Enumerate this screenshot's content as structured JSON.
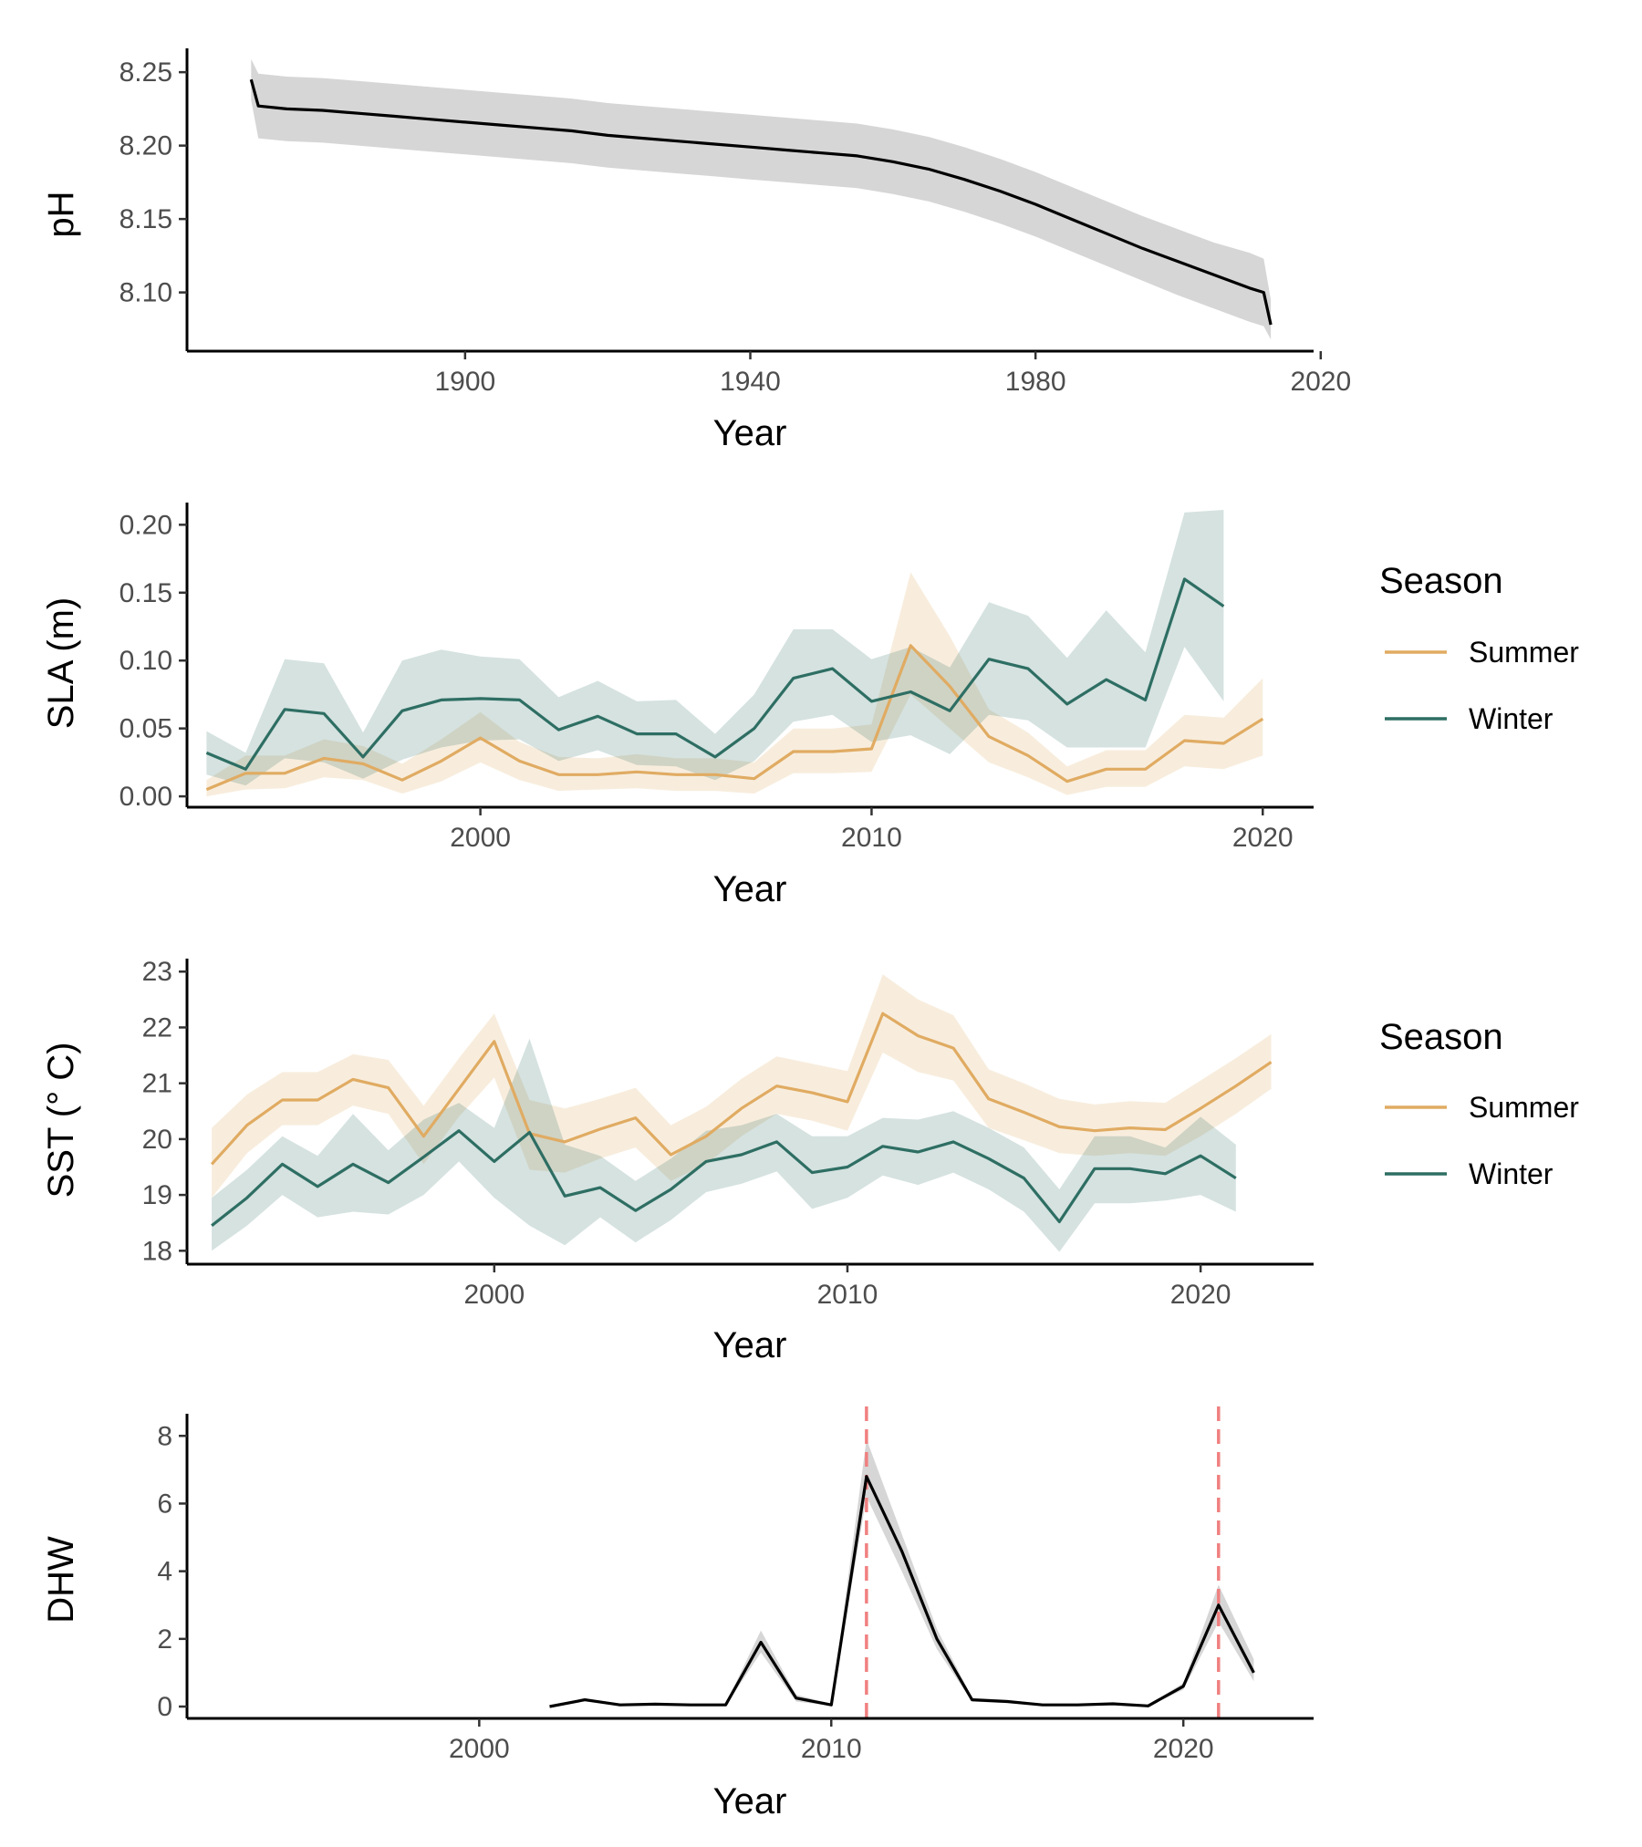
{
  "colors": {
    "summer": "#E0AB62",
    "winter": "#2E6E63",
    "line": "#000000",
    "band": "#BDBDBD",
    "vline": "#F08080"
  },
  "chart_data": [
    {
      "type": "line",
      "xlabel": "Year",
      "ylabel": "pH",
      "xlim": [
        1861,
        2019
      ],
      "ylim": [
        8.06,
        8.265
      ],
      "x_ticks": [
        1900,
        1940,
        1980,
        2020
      ],
      "y_ticks": [
        8.1,
        8.15,
        8.2,
        8.25
      ],
      "y_tick_labels": [
        "8.10",
        "8.15",
        "8.20",
        "8.25"
      ],
      "grid": false,
      "legend": "none",
      "series": [
        {
          "x": [
            1870,
            1871,
            1875,
            1880,
            1885,
            1890,
            1895,
            1900,
            1905,
            1910,
            1915,
            1920,
            1925,
            1930,
            1935,
            1940,
            1945,
            1950,
            1955,
            1960,
            1965,
            1970,
            1975,
            1980,
            1985,
            1990,
            1995,
            2000,
            2005,
            2010,
            2012,
            2013
          ],
          "y": [
            8.245,
            8.227,
            8.225,
            8.224,
            8.222,
            8.22,
            8.218,
            8.216,
            8.214,
            8.212,
            8.21,
            8.207,
            8.205,
            8.203,
            8.201,
            8.199,
            8.197,
            8.195,
            8.193,
            8.189,
            8.184,
            8.177,
            8.169,
            8.16,
            8.15,
            8.14,
            8.13,
            8.121,
            8.112,
            8.103,
            8.1,
            8.078
          ],
          "lower": [
            8.231,
            8.205,
            8.203,
            8.202,
            8.2,
            8.198,
            8.196,
            8.194,
            8.192,
            8.19,
            8.188,
            8.185,
            8.183,
            8.181,
            8.179,
            8.177,
            8.175,
            8.173,
            8.171,
            8.167,
            8.162,
            8.155,
            8.147,
            8.138,
            8.128,
            8.118,
            8.108,
            8.098,
            8.089,
            8.08,
            8.077,
            8.068
          ],
          "upper": [
            8.259,
            8.249,
            8.247,
            8.246,
            8.244,
            8.242,
            8.24,
            8.238,
            8.236,
            8.234,
            8.232,
            8.229,
            8.227,
            8.225,
            8.223,
            8.221,
            8.219,
            8.217,
            8.215,
            8.211,
            8.206,
            8.199,
            8.191,
            8.182,
            8.172,
            8.162,
            8.152,
            8.143,
            8.134,
            8.127,
            8.123,
            8.095
          ]
        }
      ]
    },
    {
      "type": "line",
      "xlabel": "Year",
      "ylabel": "SLA (m)",
      "xlim": [
        1992.5,
        2021.3
      ],
      "ylim": [
        -0.008,
        0.215
      ],
      "x_ticks": [
        2000,
        2010,
        2020
      ],
      "y_ticks": [
        0.0,
        0.05,
        0.1,
        0.15,
        0.2
      ],
      "y_tick_labels": [
        "0.00",
        "0.05",
        "0.10",
        "0.15",
        "0.20"
      ],
      "grid": false,
      "legend": "right",
      "legend_title": "Season",
      "series": [
        {
          "name": "Summer",
          "x": [
            1993,
            1994,
            1995,
            1996,
            1997,
            1998,
            1999,
            2000,
            2001,
            2002,
            2003,
            2004,
            2005,
            2006,
            2007,
            2008,
            2009,
            2010,
            2011,
            2012,
            2013,
            2014,
            2015,
            2016,
            2017,
            2018,
            2019,
            2020
          ],
          "y": [
            0.005,
            0.017,
            0.017,
            0.028,
            0.024,
            0.012,
            0.026,
            0.043,
            0.026,
            0.016,
            0.016,
            0.018,
            0.016,
            0.016,
            0.013,
            0.033,
            0.033,
            0.035,
            0.111,
            0.081,
            0.044,
            0.03,
            0.011,
            0.02,
            0.02,
            0.041,
            0.039,
            0.057
          ],
          "lower": [
            0.0,
            0.005,
            0.006,
            0.014,
            0.012,
            0.002,
            0.011,
            0.025,
            0.012,
            0.004,
            0.005,
            0.006,
            0.004,
            0.004,
            0.002,
            0.017,
            0.017,
            0.018,
            0.075,
            0.05,
            0.025,
            0.014,
            0.001,
            0.007,
            0.007,
            0.022,
            0.02,
            0.03
          ],
          "upper": [
            0.012,
            0.03,
            0.03,
            0.042,
            0.037,
            0.024,
            0.042,
            0.062,
            0.04,
            0.029,
            0.028,
            0.031,
            0.028,
            0.028,
            0.025,
            0.05,
            0.05,
            0.053,
            0.165,
            0.118,
            0.064,
            0.047,
            0.022,
            0.034,
            0.034,
            0.06,
            0.058,
            0.087
          ]
        },
        {
          "name": "Winter",
          "x": [
            1993,
            1994,
            1995,
            1996,
            1997,
            1998,
            1999,
            2000,
            2001,
            2002,
            2003,
            2004,
            2005,
            2006,
            2007,
            2008,
            2009,
            2010,
            2011,
            2012,
            2013,
            2014,
            2015,
            2016,
            2017,
            2018,
            2019
          ],
          "y": [
            0.032,
            0.02,
            0.064,
            0.061,
            0.029,
            0.063,
            0.071,
            0.072,
            0.071,
            0.049,
            0.059,
            0.046,
            0.046,
            0.029,
            0.05,
            0.087,
            0.094,
            0.07,
            0.077,
            0.063,
            0.101,
            0.094,
            0.068,
            0.086,
            0.071,
            0.16,
            0.14
          ],
          "lower": [
            0.016,
            0.008,
            0.028,
            0.025,
            0.013,
            0.027,
            0.036,
            0.041,
            0.042,
            0.026,
            0.034,
            0.023,
            0.022,
            0.012,
            0.026,
            0.055,
            0.06,
            0.04,
            0.045,
            0.031,
            0.06,
            0.056,
            0.036,
            0.036,
            0.036,
            0.11,
            0.07
          ],
          "upper": [
            0.048,
            0.032,
            0.101,
            0.098,
            0.047,
            0.1,
            0.108,
            0.103,
            0.101,
            0.073,
            0.085,
            0.07,
            0.071,
            0.046,
            0.075,
            0.123,
            0.123,
            0.101,
            0.11,
            0.095,
            0.143,
            0.133,
            0.102,
            0.137,
            0.106,
            0.209,
            0.211
          ]
        }
      ]
    },
    {
      "type": "line",
      "xlabel": "Year",
      "ylabel": "SST (° C)",
      "xlim": [
        1991.3,
        2023.2
      ],
      "ylim": [
        17.76,
        23.2
      ],
      "x_ticks": [
        2000,
        2010,
        2020
      ],
      "y_ticks": [
        18,
        19,
        20,
        21,
        22,
        23
      ],
      "y_tick_labels": [
        "18",
        "19",
        "20",
        "21",
        "22",
        "23"
      ],
      "grid": false,
      "legend": "right",
      "legend_title": "Season",
      "series": [
        {
          "name": "Summer",
          "x": [
            1992,
            1993,
            1994,
            1995,
            1996,
            1997,
            1998,
            1999,
            2000,
            2001,
            2002,
            2003,
            2004,
            2005,
            2006,
            2007,
            2008,
            2009,
            2010,
            2011,
            2012,
            2013,
            2014,
            2015,
            2016,
            2017,
            2018,
            2019,
            2020,
            2021,
            2022
          ],
          "y": [
            19.55,
            20.25,
            20.7,
            20.7,
            21.07,
            20.92,
            20.05,
            20.9,
            21.75,
            20.1,
            19.95,
            20.18,
            20.38,
            19.72,
            20.05,
            20.55,
            20.95,
            20.83,
            20.67,
            22.25,
            21.85,
            21.63,
            20.72,
            20.48,
            20.22,
            20.15,
            20.2,
            20.17,
            20.55,
            20.95,
            21.38
          ],
          "lower": [
            18.95,
            19.75,
            20.25,
            20.25,
            20.6,
            20.45,
            19.55,
            20.4,
            21.1,
            19.45,
            19.4,
            19.65,
            19.85,
            19.25,
            19.55,
            20.05,
            20.45,
            20.33,
            20.15,
            21.55,
            21.2,
            21.05,
            20.2,
            19.98,
            19.75,
            19.7,
            19.75,
            19.7,
            20.05,
            20.45,
            20.9
          ],
          "upper": [
            20.2,
            20.8,
            21.2,
            21.2,
            21.52,
            21.42,
            20.6,
            21.45,
            22.25,
            20.7,
            20.55,
            20.72,
            20.92,
            20.25,
            20.58,
            21.08,
            21.48,
            21.35,
            21.22,
            22.95,
            22.5,
            22.22,
            21.25,
            21.0,
            20.72,
            20.62,
            20.68,
            20.65,
            21.05,
            21.45,
            21.88
          ]
        },
        {
          "name": "Winter",
          "x": [
            1992,
            1993,
            1994,
            1995,
            1996,
            1997,
            1998,
            1999,
            2000,
            2001,
            2002,
            2003,
            2004,
            2005,
            2006,
            2007,
            2008,
            2009,
            2010,
            2011,
            2012,
            2013,
            2014,
            2015,
            2016,
            2017,
            2018,
            2019,
            2020,
            2021
          ],
          "y": [
            18.45,
            18.95,
            19.55,
            19.15,
            19.55,
            19.22,
            19.68,
            20.15,
            19.6,
            20.12,
            18.98,
            19.13,
            18.72,
            19.1,
            19.6,
            19.72,
            19.95,
            19.4,
            19.5,
            19.87,
            19.77,
            19.95,
            19.65,
            19.3,
            18.52,
            19.47,
            19.47,
            19.38,
            19.7,
            19.3
          ],
          "lower": [
            18.0,
            18.45,
            19.0,
            18.6,
            18.7,
            18.65,
            19.0,
            19.6,
            18.95,
            18.45,
            18.1,
            18.6,
            18.15,
            18.55,
            19.05,
            19.2,
            19.42,
            18.75,
            18.95,
            19.35,
            19.18,
            19.4,
            19.1,
            18.7,
            17.98,
            18.85,
            18.85,
            18.9,
            19.0,
            18.7
          ],
          "upper": [
            18.95,
            19.45,
            20.05,
            19.7,
            20.45,
            19.8,
            20.35,
            20.65,
            20.2,
            21.8,
            19.9,
            19.7,
            19.25,
            19.65,
            20.15,
            20.25,
            20.45,
            20.05,
            20.05,
            20.38,
            20.35,
            20.5,
            20.2,
            19.85,
            19.1,
            20.05,
            20.05,
            19.85,
            20.4,
            19.9
          ]
        }
      ]
    },
    {
      "type": "line",
      "xlabel": "Year",
      "ylabel": "DHW",
      "xlim": [
        1991.7,
        2023.7
      ],
      "ylim": [
        -0.35,
        8.6
      ],
      "x_ticks": [
        2000,
        2010,
        2020
      ],
      "y_ticks": [
        0,
        2,
        4,
        6,
        8
      ],
      "y_tick_labels": [
        "0",
        "2",
        "4",
        "6",
        "8"
      ],
      "grid": false,
      "legend": "none",
      "reference_lines_x": [
        2011,
        2021
      ],
      "series": [
        {
          "x": [
            2002,
            2003,
            2004,
            2005,
            2006,
            2007,
            2008,
            2009,
            2010,
            2011,
            2012,
            2013,
            2014,
            2015,
            2016,
            2017,
            2018,
            2019,
            2020,
            2021,
            2022
          ],
          "y": [
            0.0,
            0.2,
            0.05,
            0.07,
            0.05,
            0.05,
            1.9,
            0.25,
            0.05,
            6.8,
            4.6,
            2.0,
            0.2,
            0.15,
            0.05,
            0.05,
            0.08,
            0.02,
            0.6,
            3.0,
            1.0
          ],
          "lower": [
            0.0,
            0.15,
            0.02,
            0.04,
            0.02,
            0.02,
            1.6,
            0.15,
            0.02,
            6.2,
            4.0,
            1.7,
            0.15,
            0.1,
            0.02,
            0.02,
            0.04,
            0.0,
            0.5,
            2.5,
            0.75
          ],
          "upper": [
            0.02,
            0.25,
            0.08,
            0.1,
            0.08,
            0.08,
            2.25,
            0.35,
            0.08,
            7.9,
            5.1,
            2.3,
            0.26,
            0.2,
            0.08,
            0.08,
            0.12,
            0.05,
            0.7,
            3.6,
            1.4
          ]
        }
      ]
    }
  ]
}
